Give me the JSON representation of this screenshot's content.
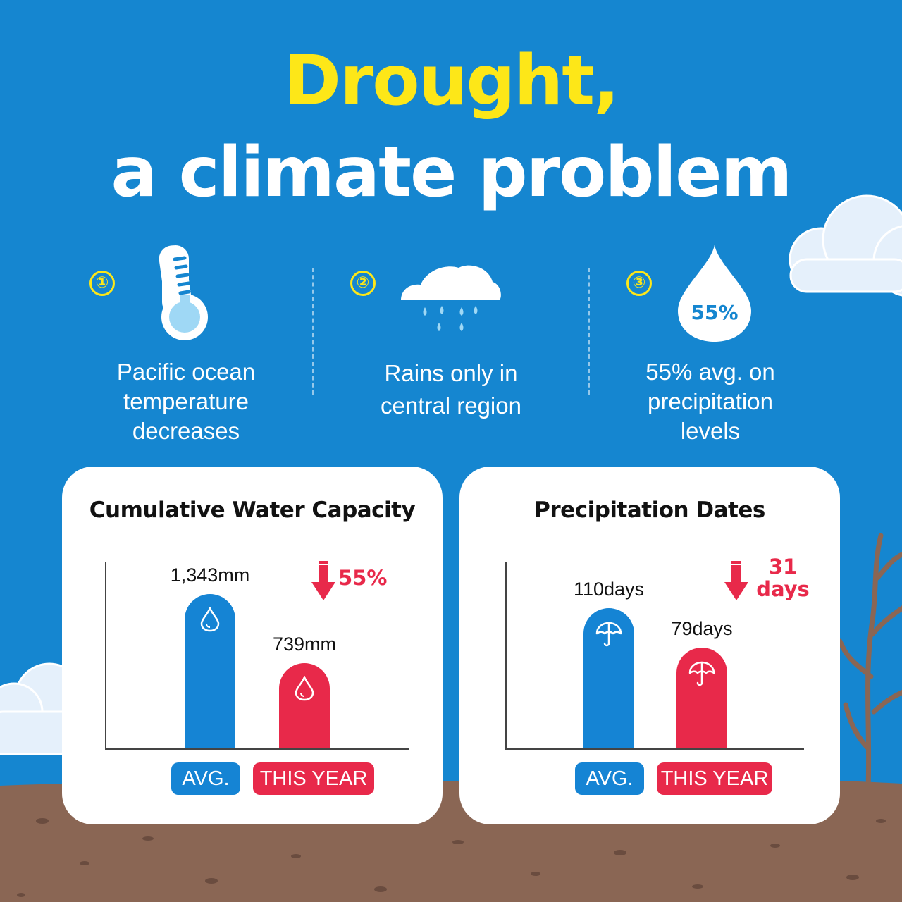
{
  "title": {
    "line1": "Drought,",
    "line2": "a climate problem"
  },
  "colors": {
    "background": "#1586d0",
    "title_accent": "#fde718",
    "avg": "#1584d4",
    "this_year": "#e8294a",
    "ground": "#8a6654"
  },
  "factors": [
    {
      "number": "①",
      "icon": "thermometer-icon",
      "text_lines": [
        "Pacific ocean",
        "temperature",
        "decreases"
      ]
    },
    {
      "number": "②",
      "icon": "rain-cloud-icon",
      "text_lines": [
        "Rains only in",
        "central region"
      ]
    },
    {
      "number": "③",
      "icon": "water-drop-icon",
      "badge": "55%",
      "text_lines": [
        "55% avg. on",
        "precipitation",
        "levels"
      ]
    }
  ],
  "chart_data": [
    {
      "type": "bar",
      "title": "Cumulative Water Capacity",
      "categories": [
        "AVG.",
        "THIS YEAR"
      ],
      "values": [
        1343,
        739
      ],
      "value_labels": [
        "1,343mm",
        "739mm"
      ],
      "unit": "mm",
      "ylim": [
        0,
        1500
      ],
      "change_label": "55%",
      "change_direction": "down",
      "bar_icon": "water-drop-icon",
      "grid": false
    },
    {
      "type": "bar",
      "title": "Precipitation Dates",
      "categories": [
        "AVG.",
        "THIS YEAR"
      ],
      "values": [
        110,
        79
      ],
      "value_labels": [
        "110days",
        "79days"
      ],
      "unit": "days",
      "ylim": [
        0,
        150
      ],
      "change_label_lines": [
        "31",
        "days"
      ],
      "change_direction": "down",
      "bar_icon": "umbrella-icon",
      "grid": false
    }
  ]
}
